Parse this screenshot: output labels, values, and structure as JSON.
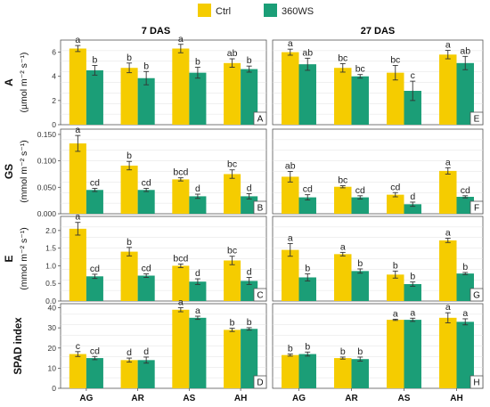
{
  "legend": {
    "items": [
      {
        "label": "Ctrl",
        "color": "#F5CC00"
      },
      {
        "label": "360WS",
        "color": "#1B9E77"
      }
    ]
  },
  "columns": [
    "7 DAS",
    "27 DAS"
  ],
  "x_categories": [
    "AG",
    "AR",
    "AS",
    "AH"
  ],
  "chart_data": [
    {
      "type": "bar",
      "panel": "A",
      "column": "7 DAS",
      "ylabel": "A",
      "ylabel_unit": "(µmol m⁻² s⁻¹)",
      "categories": [
        "AG",
        "AR",
        "AS",
        "AH"
      ],
      "ylim": [
        0,
        7
      ],
      "yticks": [
        "0",
        "2",
        "4",
        "6"
      ],
      "series": [
        {
          "name": "Ctrl",
          "values": [
            6.3,
            4.7,
            6.3,
            5.1
          ],
          "err": [
            0.25,
            0.4,
            0.35,
            0.35
          ],
          "letters": [
            "a",
            "b",
            "a",
            "ab"
          ]
        },
        {
          "name": "360WS",
          "values": [
            4.5,
            3.85,
            4.3,
            4.6
          ],
          "err": [
            0.4,
            0.55,
            0.45,
            0.25
          ],
          "letters": [
            "b",
            "b",
            "b",
            "b"
          ]
        }
      ]
    },
    {
      "type": "bar",
      "panel": "B",
      "column": "7 DAS",
      "ylabel": "GS",
      "ylabel_unit": "(mmol m⁻² s⁻¹)",
      "categories": [
        "AG",
        "AR",
        "AS",
        "AH"
      ],
      "ylim": [
        0,
        0.16
      ],
      "yticks": [
        "0.000",
        "0.050",
        "0.100",
        "0.150"
      ],
      "series": [
        {
          "name": "Ctrl",
          "values": [
            0.133,
            0.091,
            0.065,
            0.075
          ],
          "err": [
            0.015,
            0.008,
            0.003,
            0.008
          ],
          "letters": [
            "a",
            "b",
            "bcd",
            "bc"
          ]
        },
        {
          "name": "360WS",
          "values": [
            0.045,
            0.045,
            0.033,
            0.033
          ],
          "err": [
            0.003,
            0.003,
            0.004,
            0.005
          ],
          "letters": [
            "cd",
            "cd",
            "d",
            "d"
          ]
        }
      ]
    },
    {
      "type": "bar",
      "panel": "C",
      "column": "7 DAS",
      "ylabel": "E",
      "ylabel_unit": "(mmol m⁻² s⁻¹)",
      "categories": [
        "AG",
        "AR",
        "AS",
        "AH"
      ],
      "ylim": [
        0,
        2.4
      ],
      "yticks": [
        "0.0",
        "0.5",
        "1.0",
        "1.5",
        "2.0"
      ],
      "series": [
        {
          "name": "Ctrl",
          "values": [
            2.05,
            1.4,
            1.0,
            1.15
          ],
          "err": [
            0.18,
            0.12,
            0.05,
            0.12
          ],
          "letters": [
            "a",
            "b",
            "bcd",
            "bc"
          ]
        },
        {
          "name": "360WS",
          "values": [
            0.7,
            0.72,
            0.55,
            0.57
          ],
          "err": [
            0.06,
            0.05,
            0.08,
            0.1
          ],
          "letters": [
            "cd",
            "cd",
            "d",
            "d"
          ]
        }
      ]
    },
    {
      "type": "bar",
      "panel": "D",
      "column": "7 DAS",
      "ylabel": "SPAD index",
      "ylabel_unit": "",
      "categories": [
        "AG",
        "AR",
        "AS",
        "AH"
      ],
      "ylim": [
        0,
        42
      ],
      "yticks": [
        "0",
        "10",
        "20",
        "30",
        "40"
      ],
      "series": [
        {
          "name": "Ctrl",
          "values": [
            17,
            14,
            39,
            29
          ],
          "err": [
            1.2,
            1.0,
            1.0,
            0.8
          ],
          "letters": [
            "c",
            "d",
            "a",
            "b"
          ]
        },
        {
          "name": "360WS",
          "values": [
            15,
            14,
            35,
            29.5
          ],
          "err": [
            0.8,
            1.5,
            0.8,
            0.6
          ],
          "letters": [
            "cd",
            "d",
            "a",
            "b"
          ]
        }
      ]
    },
    {
      "type": "bar",
      "panel": "E",
      "column": "27 DAS",
      "categories": [
        "AG",
        "AR",
        "AS",
        "AH"
      ],
      "ylim": [
        0,
        7
      ],
      "series": [
        {
          "name": "Ctrl",
          "values": [
            6.0,
            4.7,
            4.3,
            5.8
          ],
          "err": [
            0.25,
            0.35,
            0.6,
            0.35
          ],
          "letters": [
            "a",
            "bc",
            "bc",
            "a"
          ]
        },
        {
          "name": "360WS",
          "values": [
            5.0,
            4.0,
            2.8,
            5.1
          ],
          "err": [
            0.5,
            0.15,
            0.8,
            0.55
          ],
          "letters": [
            "ab",
            "bc",
            "c",
            "ab"
          ]
        }
      ]
    },
    {
      "type": "bar",
      "panel": "F",
      "column": "27 DAS",
      "categories": [
        "AG",
        "AR",
        "AS",
        "AH"
      ],
      "ylim": [
        0,
        0.16
      ],
      "series": [
        {
          "name": "Ctrl",
          "values": [
            0.07,
            0.051,
            0.036,
            0.081
          ],
          "err": [
            0.01,
            0.002,
            0.004,
            0.006
          ],
          "letters": [
            "ab",
            "bc",
            "cd",
            "a"
          ]
        },
        {
          "name": "360WS",
          "values": [
            0.031,
            0.031,
            0.018,
            0.032
          ],
          "err": [
            0.005,
            0.003,
            0.004,
            0.002
          ],
          "letters": [
            "cd",
            "cd",
            "d",
            "cd"
          ]
        }
      ]
    },
    {
      "type": "bar",
      "panel": "G",
      "column": "27 DAS",
      "categories": [
        "AG",
        "AR",
        "AS",
        "AH"
      ],
      "ylim": [
        0,
        2.4
      ],
      "series": [
        {
          "name": "Ctrl",
          "values": [
            1.45,
            1.33,
            0.75,
            1.72
          ],
          "err": [
            0.18,
            0.05,
            0.1,
            0.06
          ],
          "letters": [
            "a",
            "a",
            "b",
            "a"
          ]
        },
        {
          "name": "360WS",
          "values": [
            0.67,
            0.85,
            0.48,
            0.78
          ],
          "err": [
            0.1,
            0.06,
            0.06,
            0.03
          ],
          "letters": [
            "b",
            "b",
            "b",
            "b"
          ]
        }
      ]
    },
    {
      "type": "bar",
      "panel": "H",
      "column": "27 DAS",
      "categories": [
        "AG",
        "AR",
        "AS",
        "AH"
      ],
      "ylim": [
        0,
        42
      ],
      "series": [
        {
          "name": "Ctrl",
          "values": [
            16.5,
            15,
            34,
            35
          ],
          "err": [
            0.5,
            0.5,
            0.3,
            2.5
          ],
          "letters": [
            "b",
            "b",
            "a",
            "a"
          ]
        },
        {
          "name": "360WS",
          "values": [
            17,
            14.5,
            34,
            33
          ],
          "err": [
            1.0,
            1.0,
            0.8,
            1.5
          ],
          "letters": [
            "b",
            "b",
            "a",
            "a"
          ]
        }
      ]
    }
  ]
}
